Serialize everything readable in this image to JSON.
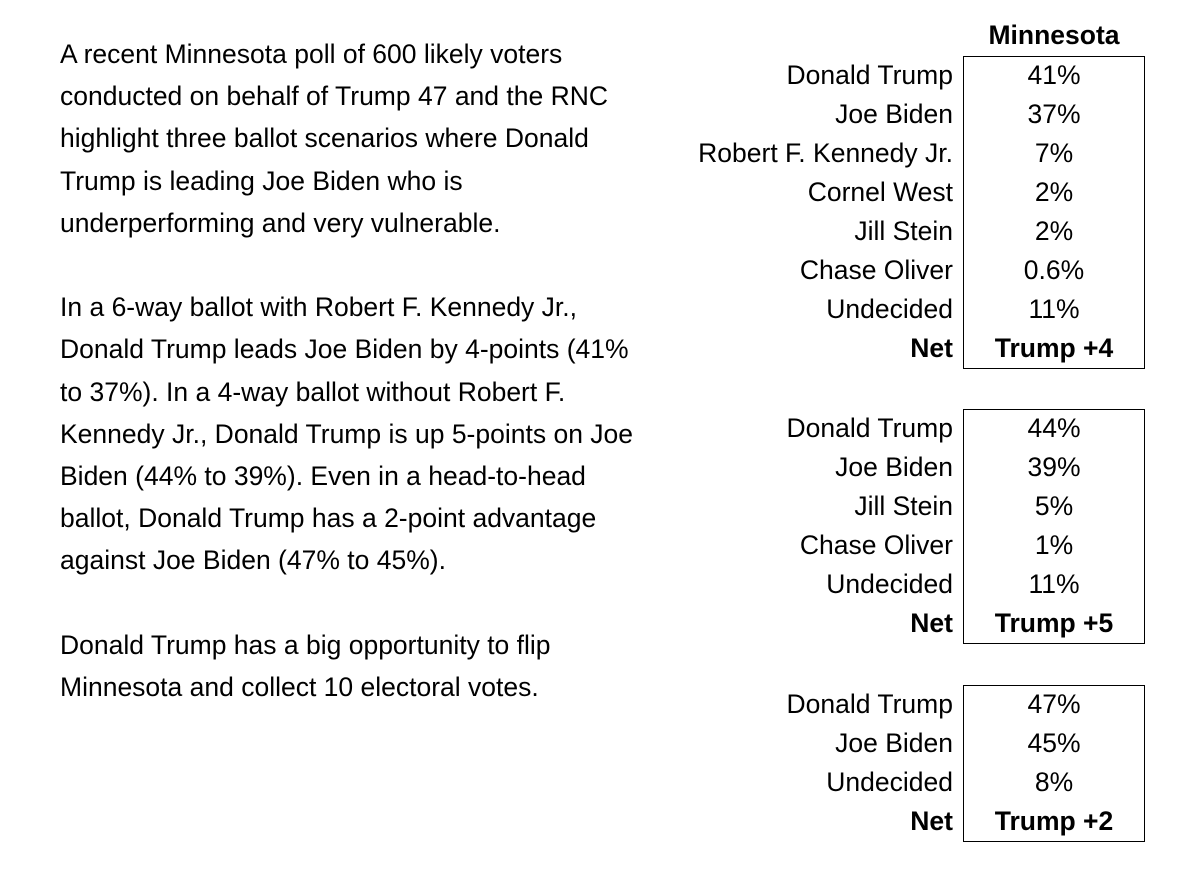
{
  "narrative": {
    "paragraphs": [
      "A recent Minnesota poll of 600 likely voters conducted on behalf of Trump 47 and the RNC highlight three ballot scenarios where Donald Trump is leading Joe Biden who is underperforming and very vulnerable.",
      "In a 6-way ballot with Robert F. Kennedy Jr., Donald Trump leads Joe Biden by 4-points (41% to 37%). In a 4-way ballot without Robert F. Kennedy Jr., Donald Trump is up 5-points on Joe Biden (44% to 39%). Even in a head-to-head ballot, Donald Trump has a 2-point advantage against Joe Biden (47% to 45%).",
      "Donald Trump has a big opportunity to flip Minnesota and collect 10 electoral votes."
    ]
  },
  "table": {
    "header": "Minnesota",
    "ballots": [
      {
        "rows": [
          {
            "candidate": "Donald Trump",
            "value": "41%"
          },
          {
            "candidate": "Joe Biden",
            "value": "37%"
          },
          {
            "candidate": "Robert F. Kennedy Jr.",
            "value": "7%"
          },
          {
            "candidate": "Cornel West",
            "value": "2%"
          },
          {
            "candidate": "Jill Stein",
            "value": "2%"
          },
          {
            "candidate": "Chase Oliver",
            "value": "0.6%"
          },
          {
            "candidate": "Undecided",
            "value": "11%"
          }
        ],
        "net_label": "Net",
        "net_value": "Trump +4"
      },
      {
        "rows": [
          {
            "candidate": "Donald Trump",
            "value": "44%"
          },
          {
            "candidate": "Joe Biden",
            "value": "39%"
          },
          {
            "candidate": "Jill Stein",
            "value": "5%"
          },
          {
            "candidate": "Chase Oliver",
            "value": "1%"
          },
          {
            "candidate": "Undecided",
            "value": "11%"
          }
        ],
        "net_label": "Net",
        "net_value": "Trump +5"
      },
      {
        "rows": [
          {
            "candidate": "Donald Trump",
            "value": "47%"
          },
          {
            "candidate": "Joe Biden",
            "value": "45%"
          },
          {
            "candidate": "Undecided",
            "value": "8%"
          }
        ],
        "net_label": "Net",
        "net_value": "Trump +2"
      }
    ]
  }
}
